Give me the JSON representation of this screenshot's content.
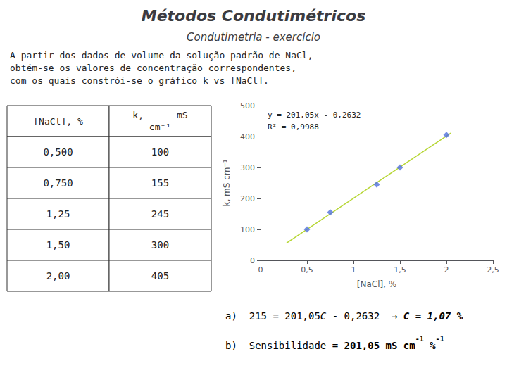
{
  "chart_data": {
    "type": "scatter",
    "title": "Métodos Condutimétricos",
    "subtitle": "Condutimetria - exercício",
    "paragraph": [
      "A partir dos dados de volume da solução padrão de NaCl,",
      "obtém-se os valores de concentração correspondentes,",
      "com os quais constrói-se o gráfico k vs [NaCl]."
    ],
    "table": {
      "header": [
        "[NaCl], %",
        [
          "k,      mS",
          "cm⁻¹"
        ]
      ],
      "rows": [
        [
          "0,500",
          "100"
        ],
        [
          "0,750",
          "155"
        ],
        [
          "1,25",
          "245"
        ],
        [
          "1,50",
          "300"
        ],
        [
          "2,00",
          "405"
        ]
      ]
    },
    "x_label": "[NaCl], %",
    "y_label": "k, mS cm⁻¹",
    "xlim": [
      0,
      2.5
    ],
    "ylim": [
      0,
      500
    ],
    "xticks": [
      0,
      {
        "value": 0.5,
        "label": "0,5"
      },
      1,
      {
        "value": 1.5,
        "label": "1,5"
      },
      2,
      {
        "value": 2.5,
        "label": "2,5"
      }
    ],
    "yticks": [
      0,
      100,
      200,
      300,
      400,
      500
    ],
    "grid": false,
    "series": [
      {
        "type": "scatter",
        "marker": "diamond",
        "x": [
          0.5,
          0.75,
          1.25,
          1.5,
          2.0
        ],
        "values": [
          100,
          155,
          245,
          300,
          405
        ]
      },
      {
        "type": "line",
        "line_style": "solid",
        "x": [
          0.28,
          2.05
        ],
        "values": [
          56.0308,
          411.8893
        ]
      }
    ],
    "annotations": [
      "y = 201,05x - 0,2632",
      "R² = 0,9988"
    ],
    "answers": [
      [
        {
          "text": "a)  215 = 201,05"
        },
        {
          "text": "C",
          "style": "italic"
        },
        {
          "text": " - 0,2632  →"
        },
        {
          "text": " C = 1,07 %",
          "style": "bold italic",
          "color": "#cc0000"
        }
      ],
      [
        {
          "text": "b)  Sensibilidade = "
        },
        {
          "text": "201,05 mS cm",
          "style": "bold",
          "color": "#cc0000"
        },
        {
          "text": "-1",
          "style": "bold superscript",
          "color": "#cc0000"
        },
        {
          "text": " %",
          "style": "bold",
          "color": "#cc0000"
        },
        {
          "text": "-1",
          "style": "bold superscript",
          "color": "#cc0000"
        }
      ]
    ]
  }
}
